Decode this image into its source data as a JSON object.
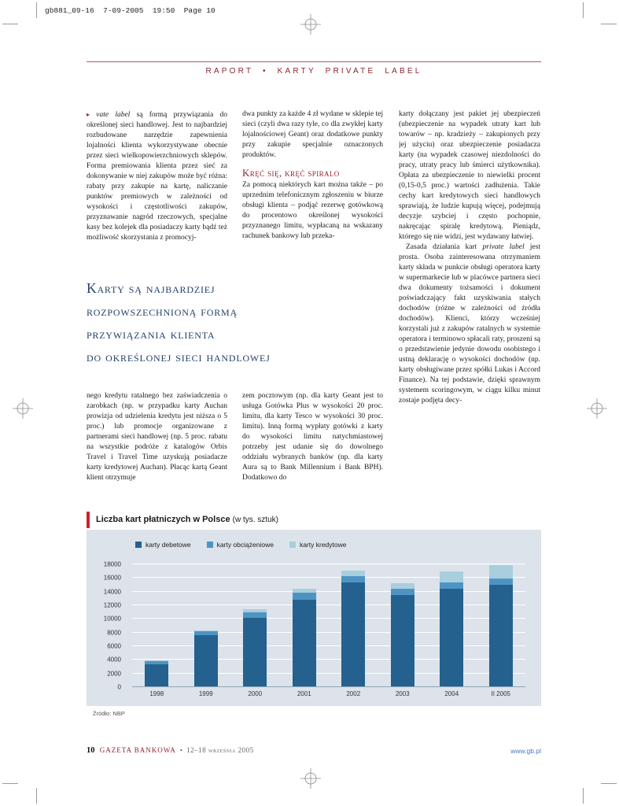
{
  "print_marks": {
    "slug": "gb881_09-16  7-09-2005  19:50  Page 10"
  },
  "header": {
    "kicker": "RAPORT • KARTY PRIVATE LABEL"
  },
  "article": {
    "col1_top_marker": "▸",
    "col1_top_italic": "vate label",
    "col1_top_rest": " są formą przywiązania do określonej sieci handlowej. Jest to najbardziej rozbudowane narzędzie zapewnienia lojalności klienta wykorzystywane obecnie przez sieci wielkopowierzchniowych sklepów. Forma premiowania klienta przez sieć za dokonywanie w niej zakupów może być różna: rabaty przy zakupie na kartę, naliczanie punktów premiowych w zależności od wysokości i częstotliwości zakupów, przyznawanie nagród rzeczowych, specjalne kasy bez kolejek dla posiadaczy karty bądź też możliwość skorzystania z promocyj-",
    "col2_top": "dwa punkty za każde 4 zł wydane w sklepie tej sieci (czyli dwa razy tyle, co dla zwykłej karty lojalnościowej Geant) oraz dodatkowe punkty przy zakupie specjalnie oznaczonych produktów.",
    "col2_heading": "Kręć się, kręć spiralo",
    "col2_body": "Za pomocą niektórych kart można także – po uprzednim telefonicznym zgłoszeniu w biurze obsługi klienta – podjąć rezerwę gotówkową do procentowo określonej wysokości przyznanego limitu, wypłacaną na wskazany rachunek bankowy lub przeka-",
    "pullquote_lines": [
      "Karty są najbardziej",
      "rozpowszechnioną formą",
      "przywiązania klienta",
      "do określonej sieci handlowej"
    ],
    "col1_bottom": "nego kredytu ratalnego bez zaświadczenia o zarobkach (np. w przypadku karty Auchan prowizja od udzielenia kredytu jest niższa o 5 proc.) lub promocje organizowane z partnerami sieci handlowej (np. 5 proc. rabatu na wszystkie podróże z katalogów Orbis Travel i Travel Time uzyskują posiadacze karty kredytowej Auchan). Płacąc kartą Geant klient otrzymuje",
    "col2_bottom": "zem pocztowym (np. dla karty Geant jest to usługa Gotówka Plus w wysokości 20 proc. limitu, dla karty Tesco w wysokości 30 proc. limitu). Inną formą wypłaty gotówki z karty do wysokości limitu natychmiastowej potrzeby jest udanie się do dowolnego oddziału wybranych banków (np. dla karty Aura są to Bank Millennium i Bank BPH). Dodatkowo do",
    "col3_p1": "karty dołączany jest pakiet jej ubezpieczeń (ubezpieczenie na wypadek utraty kart lub towarów – np. kradzieży – zakupionych przy jej użyciu) oraz ubezpieczenie posiadacza karty (na wypadek czasowej niezdolności do pracy, utraty pracy lub śmierci użytkownika). Opłata za ubezpieczenie to niewielki procent (0,15-0,5 proc.) wartości zadłużenia. Takie cechy kart kredytowych sieci handlowych sprawiają, że ludzie kupują więcej, podejmują decyzje szybciej i często pochopnie, nakręcając spiralę kredytową. Pieniądz, którego się nie widzi, jest wydawany łatwiej.",
    "col3_p2_pre": "Zasada działania kart ",
    "col3_p2_italic": "private label",
    "col3_p2_rest": " jest prosta. Osoba zainteresowana otrzymaniem karty składa w punkcie obsługi operatora karty w supermarkecie lub w placówce partnera sieci dwa dokumenty tożsamości i dokument poświadczający fakt uzyskiwania stałych dochodów (różne w zależności od źródła dochodów). Klienci, którzy wcześniej korzystali już z zakupów ratalnych w systemie operatora i terminowo spłacali raty, proszeni są o przedstawienie jedynie dowodu osobistego i ustną deklarację o wysokości dochodów (np. karty obsługiwane przez spółki Lukas i Accord Finance). Na tej podstawie, dzięki sprawnym systemem scoringowym, w ciągu kilku minut zostaje podjęta decy-"
  },
  "chart_data": {
    "type": "bar",
    "stacked": true,
    "title": "Liczba kart płatniczych w Polsce",
    "subtitle": "(w tys. sztuk)",
    "source": "Źródło: NBP",
    "categories": [
      "1998",
      "1999",
      "2000",
      "2001",
      "2002",
      "2003",
      "2004",
      "II 2005"
    ],
    "series": [
      {
        "name": "karty debetowe",
        "color": "#24618e",
        "values": [
          3300,
          7500,
          10100,
          12800,
          15300,
          13500,
          14400,
          15000
        ]
      },
      {
        "name": "karty obciążeniowe",
        "color": "#4d94c4",
        "values": [
          450,
          600,
          850,
          1000,
          1000,
          900,
          900,
          900
        ]
      },
      {
        "name": "karty kredytowe",
        "color": "#a9cede",
        "values": [
          100,
          200,
          400,
          600,
          800,
          800,
          1600,
          2000
        ]
      }
    ],
    "totals": [
      3850,
      8300,
      11350,
      14400,
      17100,
      15200,
      16900,
      17900
    ],
    "ylim": [
      0,
      18000
    ],
    "ytick_step": 2000,
    "grid": true,
    "legend_position": "top-left",
    "panel_bg": "#dde3ea"
  },
  "footer": {
    "page_number": "10",
    "magazine": "GAZETA BANKOWA",
    "separator": "•",
    "date": "12–18 września 2005",
    "url": "www.gb.pl"
  },
  "colors": {
    "accent_maroon": "#8e2430",
    "pullquote_navy": "#23406b",
    "chart_red_bar": "#cf2030",
    "link_blue": "#4a76c9"
  }
}
